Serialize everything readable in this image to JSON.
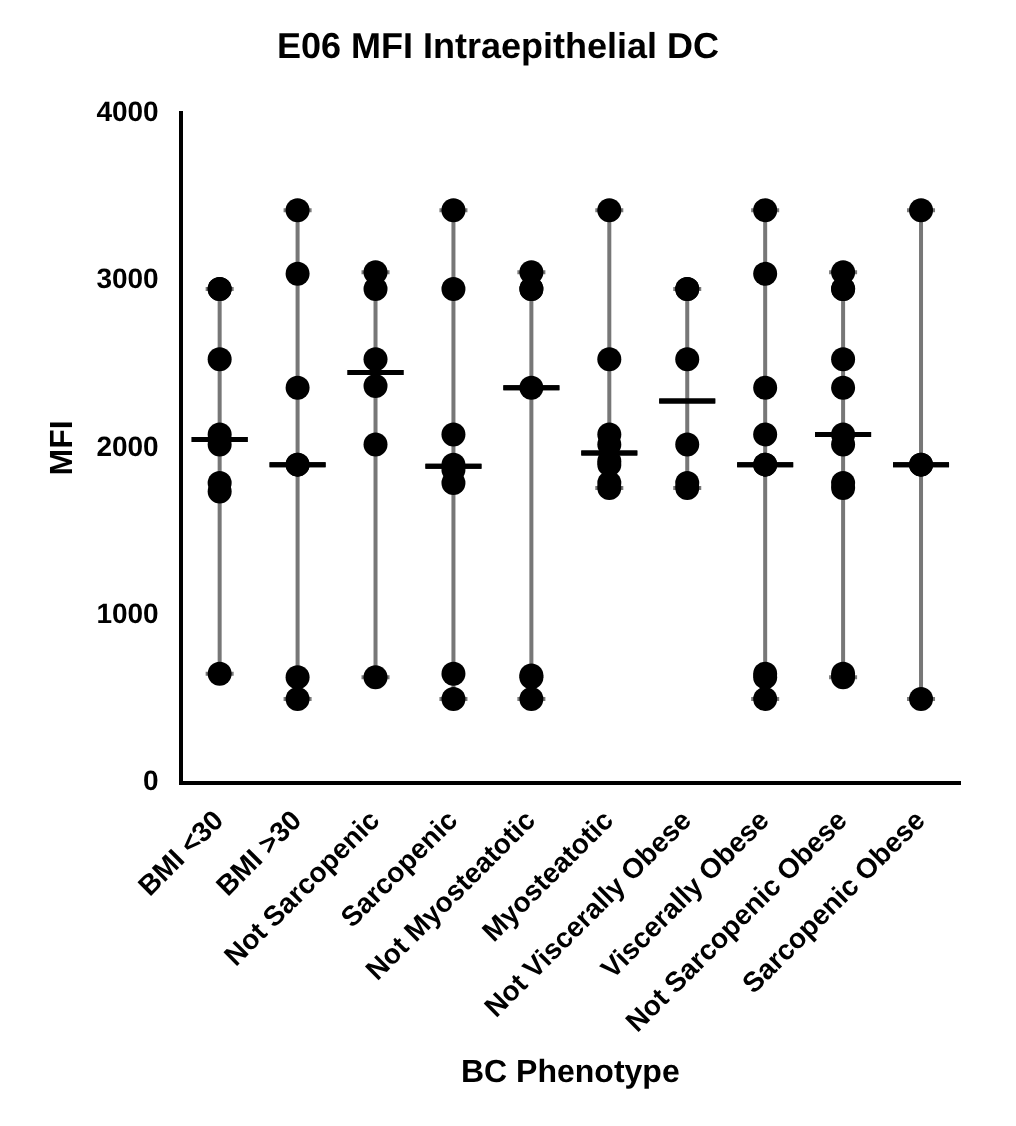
{
  "chart_data": {
    "type": "scatter",
    "title": "E06 MFI Intraepithelial DC",
    "xlabel": "BC Phenotype",
    "ylabel": "MFI",
    "categories": [
      "BMI <30",
      "BMI >30",
      "Not Sarcopenic",
      "Sarcopenic",
      "Not Myosteatotic",
      "Myosteatotic",
      "Not Viscerally Obese",
      "Viscerally Obese",
      "Not Sarcopenic Obese",
      "Sarcopenic Obese"
    ],
    "ylim": [
      0,
      4000
    ],
    "yticks": [
      0,
      1000,
      2000,
      3000,
      4000
    ],
    "grid": false,
    "legend": false,
    "series": [
      {
        "color": "#000000",
        "marker": "circle",
        "x": [
          "BMI <30",
          "BMI <30",
          "BMI <30",
          "BMI <30",
          "BMI <30",
          "BMI <30",
          "BMI <30",
          "BMI <30",
          "BMI >30",
          "BMI >30",
          "BMI >30",
          "BMI >30",
          "BMI >30",
          "BMI >30",
          "BMI >30",
          "Not Sarcopenic",
          "Not Sarcopenic",
          "Not Sarcopenic",
          "Not Sarcopenic",
          "Not Sarcopenic",
          "Not Sarcopenic",
          "Sarcopenic",
          "Sarcopenic",
          "Sarcopenic",
          "Sarcopenic",
          "Sarcopenic",
          "Sarcopenic",
          "Sarcopenic",
          "Sarcopenic",
          "Not Myosteatotic",
          "Not Myosteatotic",
          "Not Myosteatotic",
          "Not Myosteatotic",
          "Not Myosteatotic",
          "Not Myosteatotic",
          "Not Myosteatotic",
          "Myosteatotic",
          "Myosteatotic",
          "Myosteatotic",
          "Myosteatotic",
          "Myosteatotic",
          "Myosteatotic",
          "Myosteatotic",
          "Myosteatotic",
          "Not Viscerally Obese",
          "Not Viscerally Obese",
          "Not Viscerally Obese",
          "Not Viscerally Obese",
          "Not Viscerally Obese",
          "Not Viscerally Obese",
          "Viscerally Obese",
          "Viscerally Obese",
          "Viscerally Obese",
          "Viscerally Obese",
          "Viscerally Obese",
          "Viscerally Obese",
          "Viscerally Obese",
          "Viscerally Obese",
          "Viscerally Obese",
          "Not Sarcopenic Obese",
          "Not Sarcopenic Obese",
          "Not Sarcopenic Obese",
          "Not Sarcopenic Obese",
          "Not Sarcopenic Obese",
          "Not Sarcopenic Obese",
          "Not Sarcopenic Obese",
          "Not Sarcopenic Obese",
          "Not Sarcopenic Obese",
          "Not Sarcopenic Obese",
          "Not Sarcopenic Obese",
          "Sarcopenic Obese",
          "Sarcopenic Obese",
          "Sarcopenic Obese",
          "Sarcopenic Obese"
        ],
        "values": [
          2950,
          2950,
          2530,
          2080,
          2020,
          1790,
          1740,
          650,
          3420,
          3040,
          2360,
          1900,
          1900,
          630,
          500,
          3050,
          2950,
          2530,
          2370,
          2020,
          630,
          3420,
          2950,
          2080,
          1900,
          1870,
          1790,
          650,
          500,
          3050,
          2950,
          2950,
          2360,
          640,
          630,
          500,
          3420,
          2530,
          2080,
          2020,
          1920,
          1900,
          1790,
          1760,
          2950,
          2950,
          2530,
          2020,
          1790,
          1760,
          3420,
          3040,
          2360,
          2080,
          1900,
          1900,
          650,
          630,
          500,
          3050,
          2950,
          2950,
          2530,
          2360,
          2080,
          2020,
          1790,
          1760,
          650,
          630,
          3420,
          1900,
          1900,
          500
        ]
      },
      {
        "type": "box",
        "color": "#000000",
        "boxes": [
          {
            "low": 650,
            "q1": 2050,
            "median": 2050,
            "q3": 2050,
            "high": 2950
          },
          {
            "low": 500,
            "q1": 1900,
            "median": 1900,
            "q3": 1900,
            "high": 3420
          },
          {
            "low": 630,
            "q1": 2450,
            "median": 2450,
            "q3": 2450,
            "high": 3050
          },
          {
            "low": 500,
            "q1": 1890,
            "median": 1890,
            "q3": 1890,
            "high": 3420
          },
          {
            "low": 500,
            "q1": 2360,
            "median": 2360,
            "q3": 2360,
            "high": 3050
          },
          {
            "low": 1760,
            "q1": 1970,
            "median": 1970,
            "q3": 1970,
            "high": 3420
          },
          {
            "low": 1760,
            "q1": 2280,
            "median": 2280,
            "q3": 2280,
            "high": 2950
          },
          {
            "low": 500,
            "q1": 1900,
            "median": 1900,
            "q3": 1900,
            "high": 3420
          },
          {
            "low": 630,
            "q1": 2080,
            "median": 2080,
            "q3": 2080,
            "high": 3050
          },
          {
            "low": 500,
            "q1": 1900,
            "median": 1900,
            "q3": 1900,
            "high": 3420
          }
        ]
      }
    ]
  }
}
